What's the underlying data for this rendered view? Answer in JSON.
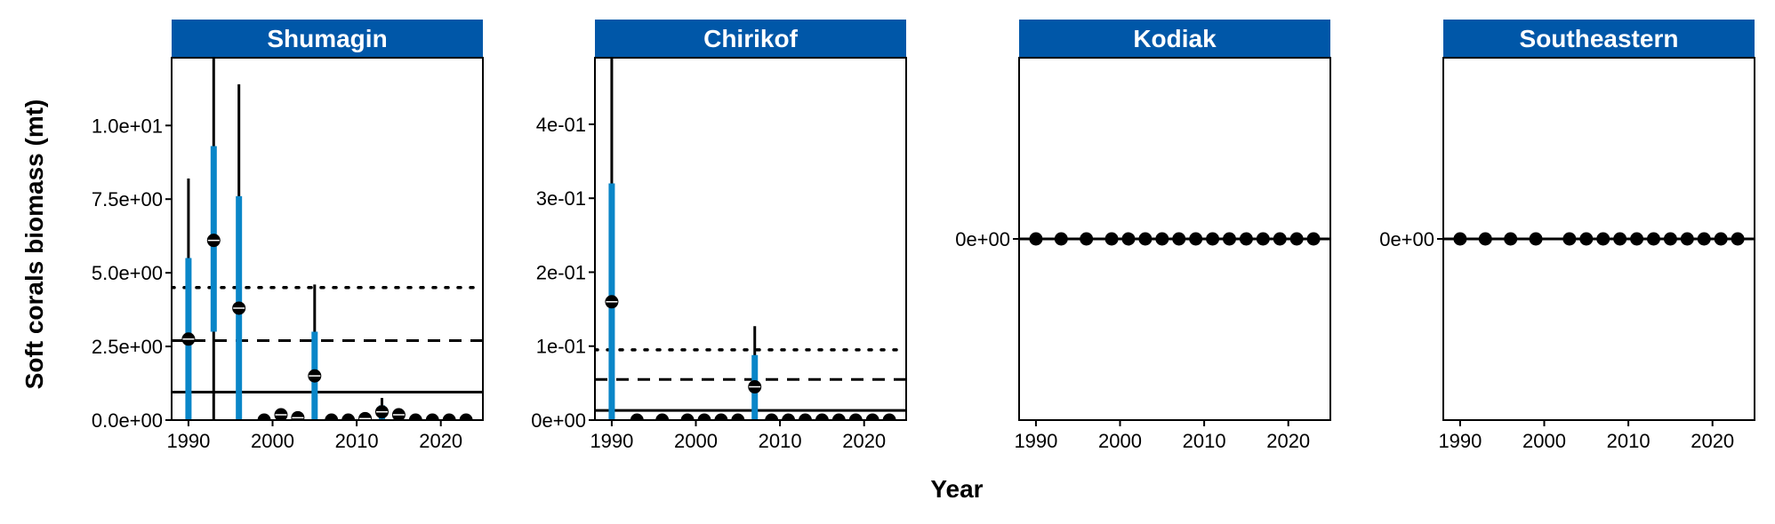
{
  "chart_data": {
    "type": "scatter",
    "xlabel": "Year",
    "ylabel": "Soft corals biomass (mt)",
    "colors": {
      "strip": "#0057a8",
      "ci_inner": "#0a86c8",
      "ci_outer": "#000000",
      "point": "#000000"
    },
    "panels": [
      {
        "title": "Shumagin",
        "xlim": [
          1988,
          2025
        ],
        "ylim": [
          0,
          12.3
        ],
        "yticks": [
          0,
          2.5,
          5,
          7.5,
          10
        ],
        "ytick_labels": [
          "0.0e+00",
          "2.5e+00",
          "5.0e+00",
          "7.5e+00",
          "1.0e+01"
        ],
        "xticks": [
          1990,
          2000,
          2010,
          2020
        ],
        "xtick_labels": [
          "1990",
          "2000",
          "2010",
          "2020"
        ],
        "hlines": {
          "solid": 0.95,
          "dashed": 2.7,
          "dotted": 4.5
        },
        "points": [
          {
            "x": 1990,
            "y": 2.75,
            "outer": [
              0,
              8.2
            ],
            "inner": [
              0,
              5.5
            ]
          },
          {
            "x": 1993,
            "y": 6.1,
            "outer": [
              0,
              12.3
            ],
            "inner": [
              3.0,
              9.3
            ]
          },
          {
            "x": 1996,
            "y": 3.8,
            "outer": [
              0,
              11.4
            ],
            "inner": [
              0,
              7.6
            ]
          },
          {
            "x": 1999,
            "y": 0
          },
          {
            "x": 2001,
            "y": 0.18,
            "outer": [
              0,
              0.35
            ],
            "inner": [
              0,
              0.3
            ]
          },
          {
            "x": 2003,
            "y": 0.08,
            "outer": [
              0,
              0.15
            ],
            "inner": [
              0,
              0.12
            ]
          },
          {
            "x": 2005,
            "y": 1.5,
            "outer": [
              0,
              4.6
            ],
            "inner": [
              0,
              3.0
            ]
          },
          {
            "x": 2007,
            "y": 0
          },
          {
            "x": 2009,
            "y": 0
          },
          {
            "x": 2011,
            "y": 0.05
          },
          {
            "x": 2013,
            "y": 0.28,
            "outer": [
              0,
              0.75
            ],
            "inner": [
              0,
              0.5
            ]
          },
          {
            "x": 2015,
            "y": 0.18,
            "outer": [
              0,
              0.4
            ],
            "inner": [
              0,
              0.35
            ]
          },
          {
            "x": 2017,
            "y": 0
          },
          {
            "x": 2019,
            "y": 0
          },
          {
            "x": 2021,
            "y": 0
          },
          {
            "x": 2023,
            "y": 0
          }
        ]
      },
      {
        "title": "Chirikof",
        "xlim": [
          1988,
          2025
        ],
        "ylim": [
          0,
          0.49
        ],
        "yticks": [
          0,
          0.1,
          0.2,
          0.3,
          0.4
        ],
        "ytick_labels": [
          "0e+00",
          "1e-01",
          "2e-01",
          "3e-01",
          "4e-01"
        ],
        "xticks": [
          1990,
          2000,
          2010,
          2020
        ],
        "xtick_labels": [
          "1990",
          "2000",
          "2010",
          "2020"
        ],
        "hlines": {
          "solid": 0.013,
          "dashed": 0.055,
          "dotted": 0.095
        },
        "points": [
          {
            "x": 1990,
            "y": 0.16,
            "outer": [
              0,
              0.49
            ],
            "inner": [
              0,
              0.32
            ]
          },
          {
            "x": 1993,
            "y": 0
          },
          {
            "x": 1996,
            "y": 0
          },
          {
            "x": 1999,
            "y": 0
          },
          {
            "x": 2001,
            "y": 0
          },
          {
            "x": 2003,
            "y": 0
          },
          {
            "x": 2005,
            "y": 0
          },
          {
            "x": 2007,
            "y": 0.045,
            "outer": [
              0,
              0.127
            ],
            "inner": [
              0,
              0.088
            ]
          },
          {
            "x": 2009,
            "y": 0
          },
          {
            "x": 2011,
            "y": 0
          },
          {
            "x": 2013,
            "y": 0
          },
          {
            "x": 2015,
            "y": 0
          },
          {
            "x": 2017,
            "y": 0
          },
          {
            "x": 2019,
            "y": 0
          },
          {
            "x": 2021,
            "y": 0
          },
          {
            "x": 2023,
            "y": 0
          }
        ]
      },
      {
        "title": "Kodiak",
        "xlim": [
          1988,
          2025
        ],
        "ylim": [
          -1,
          1
        ],
        "yticks": [
          0
        ],
        "ytick_labels": [
          "0e+00"
        ],
        "xticks": [
          1990,
          2000,
          2010,
          2020
        ],
        "xtick_labels": [
          "1990",
          "2000",
          "2010",
          "2020"
        ],
        "hlines": {
          "solid": 0
        },
        "points": [
          {
            "x": 1990,
            "y": 0
          },
          {
            "x": 1993,
            "y": 0
          },
          {
            "x": 1996,
            "y": 0
          },
          {
            "x": 1999,
            "y": 0
          },
          {
            "x": 2001,
            "y": 0
          },
          {
            "x": 2003,
            "y": 0
          },
          {
            "x": 2005,
            "y": 0
          },
          {
            "x": 2007,
            "y": 0
          },
          {
            "x": 2009,
            "y": 0
          },
          {
            "x": 2011,
            "y": 0
          },
          {
            "x": 2013,
            "y": 0
          },
          {
            "x": 2015,
            "y": 0
          },
          {
            "x": 2017,
            "y": 0
          },
          {
            "x": 2019,
            "y": 0
          },
          {
            "x": 2021,
            "y": 0
          },
          {
            "x": 2023,
            "y": 0
          }
        ]
      },
      {
        "title": "Southeastern",
        "xlim": [
          1988,
          2025
        ],
        "ylim": [
          -1,
          1
        ],
        "yticks": [
          0
        ],
        "ytick_labels": [
          "0e+00"
        ],
        "xticks": [
          1990,
          2000,
          2010,
          2020
        ],
        "xtick_labels": [
          "1990",
          "2000",
          "2010",
          "2020"
        ],
        "hlines": {
          "solid": 0
        },
        "points": [
          {
            "x": 1990,
            "y": 0
          },
          {
            "x": 1993,
            "y": 0
          },
          {
            "x": 1996,
            "y": 0
          },
          {
            "x": 1999,
            "y": 0
          },
          {
            "x": 2003,
            "y": 0
          },
          {
            "x": 2005,
            "y": 0
          },
          {
            "x": 2007,
            "y": 0
          },
          {
            "x": 2009,
            "y": 0
          },
          {
            "x": 2011,
            "y": 0
          },
          {
            "x": 2013,
            "y": 0
          },
          {
            "x": 2015,
            "y": 0
          },
          {
            "x": 2017,
            "y": 0
          },
          {
            "x": 2019,
            "y": 0
          },
          {
            "x": 2021,
            "y": 0
          },
          {
            "x": 2023,
            "y": 0
          }
        ]
      }
    ]
  }
}
